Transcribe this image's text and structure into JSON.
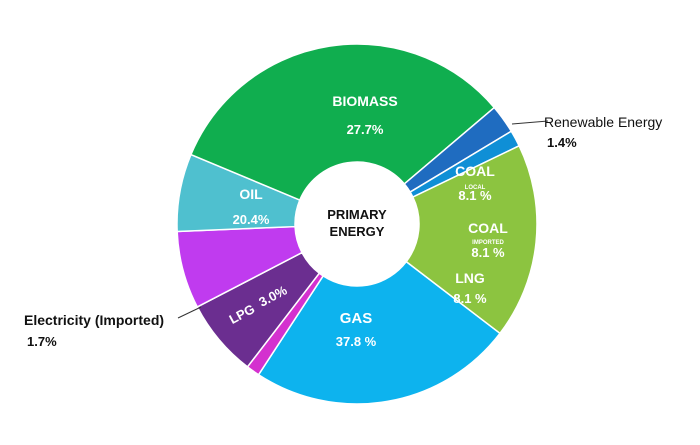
{
  "chart_data": {
    "type": "pie",
    "variant": "donut",
    "center_label": [
      "PRIMARY",
      "ENERGY"
    ],
    "slices": [
      {
        "name": "BIOMASS",
        "sub": "",
        "value": 27.7,
        "value_label": "27.7%",
        "color": "#0DB3EE"
      },
      {
        "name": "Renewable Energy",
        "sub": "",
        "value": 1.4,
        "value_label": "1.4%",
        "color": "#D431CF"
      },
      {
        "name": "COAL",
        "sub": "LOCAL",
        "value": 8.1,
        "value_label": "8.1 %",
        "color": "#6B2E90"
      },
      {
        "name": "COAL",
        "sub": "IMPORTED",
        "value": 8.1,
        "value_label": "8.1 %",
        "color": "#C03BEF"
      },
      {
        "name": "LNG",
        "sub": "",
        "value": 8.1,
        "value_label": "8.1 %",
        "color": "#4FC0CF"
      },
      {
        "name": "GAS",
        "sub": "",
        "value": 37.8,
        "value_label": "37.8 %",
        "color": "#10AE4F"
      },
      {
        "name": "LPG",
        "sub": "",
        "value": 3.0,
        "value_label": "3.0%",
        "color": "#1F6CC0"
      },
      {
        "name": "Electricity (Imported)",
        "sub": "",
        "value": 1.7,
        "value_label": "1.7%",
        "color": "#0F8FD6"
      },
      {
        "name": "OIL",
        "sub": "",
        "value": 20.4,
        "value_label": "20.4%",
        "color": "#8CC440"
      }
    ]
  }
}
